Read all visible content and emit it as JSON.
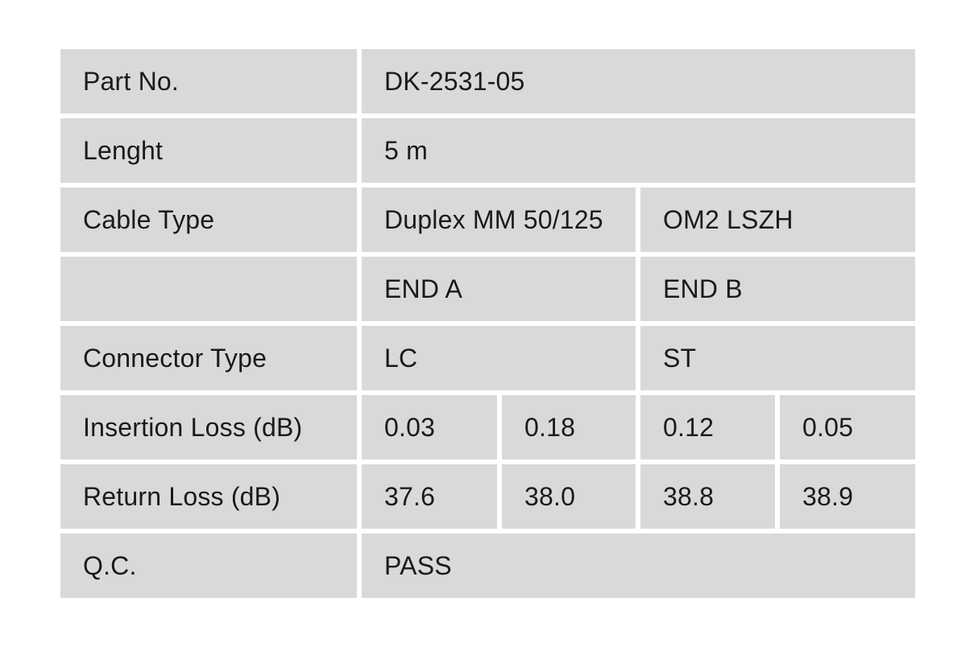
{
  "colors": {
    "page_background": "#ffffff",
    "cell_background": "#d9d9d9",
    "text": "#1a1a1a"
  },
  "table": {
    "part_no": {
      "label": "Part No.",
      "value": "DK-2531-05"
    },
    "length": {
      "label": "Lenght",
      "value": "5 m"
    },
    "cable_type": {
      "label": "Cable Type",
      "value_left": "Duplex MM 50/125",
      "value_right": "OM2 LSZH"
    },
    "ends_header": {
      "label": "",
      "end_a": "END A",
      "end_b": "END B"
    },
    "connector_type": {
      "label": "Connector Type",
      "end_a": "LC",
      "end_b": "ST"
    },
    "insertion_loss": {
      "label": "Insertion Loss (dB)",
      "values": [
        "0.03",
        "0.18",
        "0.12",
        "0.05"
      ]
    },
    "return_loss": {
      "label": "Return Loss (dB)",
      "values": [
        "37.6",
        "38.0",
        "38.8",
        "38.9"
      ]
    },
    "qc": {
      "label": "Q.C.",
      "value": "PASS"
    }
  }
}
